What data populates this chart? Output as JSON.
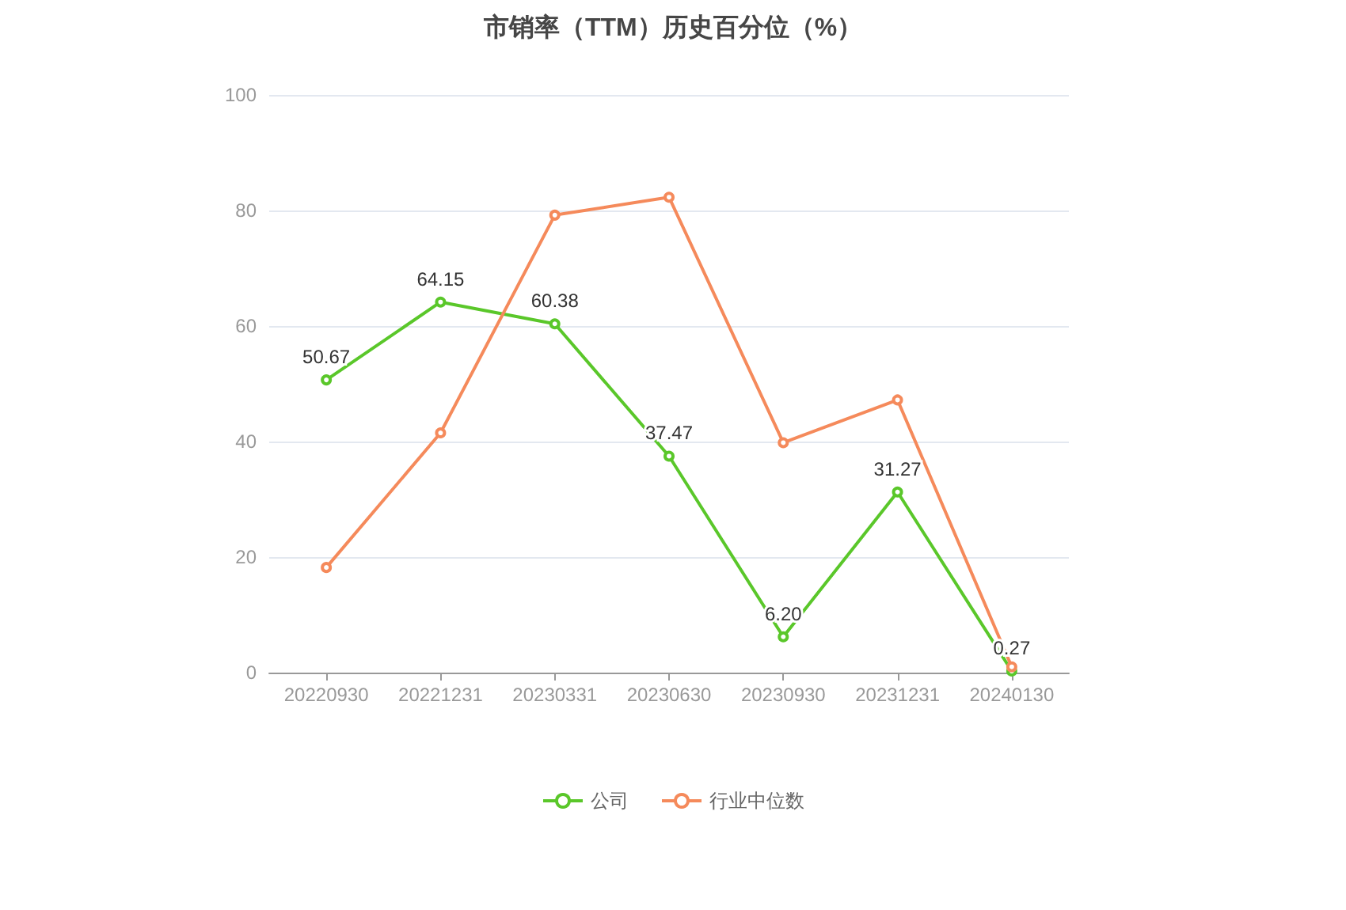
{
  "chart_data": {
    "type": "line",
    "title": "市销率（TTM）历史百分位（%）",
    "categories": [
      "20220930",
      "20221231",
      "20230331",
      "20230630",
      "20230930",
      "20231231",
      "20240130"
    ],
    "series": [
      {
        "name": "公司",
        "color": "#5ac72a",
        "values": [
          50.67,
          64.15,
          60.38,
          37.47,
          6.2,
          31.27,
          0.27
        ],
        "value_labels": [
          "50.67",
          "64.15",
          "60.38",
          "37.47",
          "6.20",
          "31.27",
          "0.27"
        ]
      },
      {
        "name": "行业中位数",
        "color": "#f58a5b",
        "values": [
          18.2,
          41.5,
          79.2,
          82.3,
          39.8,
          47.2,
          1.0
        ]
      }
    ],
    "ylim": [
      0,
      100
    ],
    "yticks": [
      0,
      20,
      40,
      60,
      80,
      100
    ],
    "grid": "y",
    "legend": "bottom",
    "marker": "circle",
    "line_style": "solid"
  }
}
